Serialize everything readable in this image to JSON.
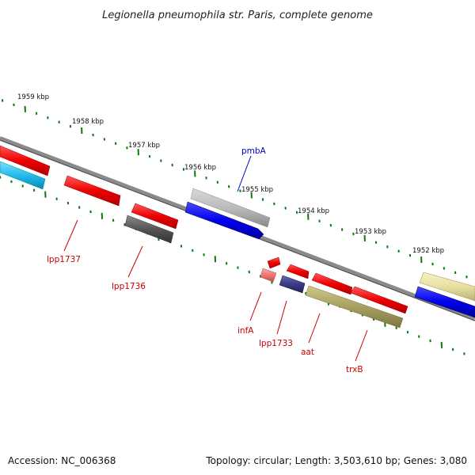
{
  "title": "Legionella pneumophila str. Paris, complete genome",
  "accession": "Accession: NC_006368",
  "topology": "Topology: circular; Length: 3,503,610 bp; Genes: 3,080",
  "scale_labels": [
    "1959 kbp",
    "1958 kbp",
    "1957 kbp",
    "1956 kbp",
    "1955 kbp",
    "1954 kbp",
    "1953 kbp",
    "1952 kbp"
  ],
  "gene_labels": [
    {
      "text": "pmbA",
      "color": "#0000cc"
    },
    {
      "text": "lpp1737",
      "color": "#cc0000"
    },
    {
      "text": "lpp1736",
      "color": "#cc0000"
    },
    {
      "text": "infA",
      "color": "#cc0000"
    },
    {
      "text": "lpp1733",
      "color": "#cc0000"
    },
    {
      "text": "aat",
      "color": "#cc0000"
    },
    {
      "text": "trxB",
      "color": "#cc0000"
    }
  ],
  "colors": {
    "backbone": "#777777",
    "tick": "#0a7a0a",
    "red_gene": "#ee0000",
    "blue_gene": "#0000ee",
    "cyan_gene": "#22bbee",
    "gray_gene": "#bbbbbb",
    "dark_gray_gene": "#555555",
    "pink_gene": "#ee7777",
    "navy_gene": "#3a3a88",
    "olive_gene": "#a8a060",
    "pale_yellow_gene": "#e8e0a0"
  }
}
